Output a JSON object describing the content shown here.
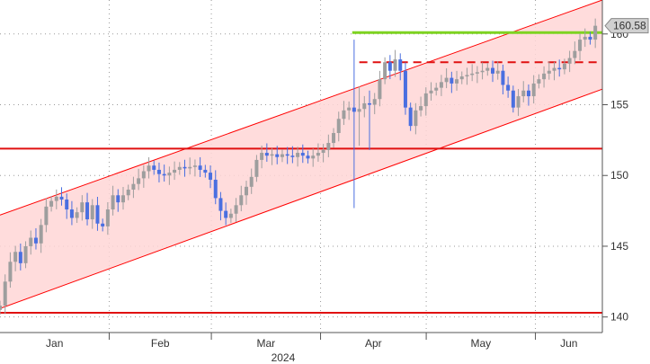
{
  "chart_data": {
    "type": "candlestick",
    "x_label": "2024",
    "months": [
      "Jan",
      "Feb",
      "Mar",
      "Apr",
      "May",
      "Jun"
    ],
    "y_axis": {
      "min": 138.9,
      "max": 162.4,
      "ticks": [
        "140",
        "145",
        "150",
        "155",
        "160"
      ],
      "side": "right",
      "grid": "dotted"
    },
    "last_price_label": "160.58",
    "series": {
      "start_date": "2024-01-01",
      "end_date": "2024-06-18",
      "closes": [
        140.8,
        142.5,
        143.9,
        144.6,
        143.8,
        145.0,
        145.6,
        145.2,
        146.5,
        147.8,
        148.2,
        148.5,
        148.3,
        147.6,
        147.0,
        147.4,
        148.1,
        146.9,
        147.9,
        146.6,
        146.4,
        147.6,
        148.6,
        148.1,
        148.6,
        149.0,
        149.4,
        149.8,
        150.3,
        150.7,
        150.4,
        150.1,
        150.0,
        150.2,
        150.4,
        150.6,
        150.5,
        150.6,
        150.7,
        150.4,
        150.2,
        149.7,
        148.4,
        147.5,
        147.0,
        147.3,
        147.9,
        148.6,
        149.2,
        149.9,
        151.1,
        151.6,
        151.4,
        151.5,
        151.3,
        151.5,
        151.4,
        151.3,
        151.6,
        151.4,
        151.2,
        151.4,
        151.6,
        151.8,
        152.3,
        153.0,
        154.0,
        154.6,
        154.8,
        154.5,
        154.7,
        155.1,
        155.0,
        155.4,
        156.8,
        158.0,
        157.4,
        158.2,
        157.4,
        154.8,
        153.5,
        154.6,
        154.9,
        155.8,
        156.0,
        156.2,
        156.6,
        156.9,
        156.5,
        156.8,
        157.0,
        157.1,
        157.2,
        157.3,
        157.4,
        157.6,
        157.2,
        157.4,
        156.4,
        156.0,
        154.8,
        155.6,
        156.0,
        155.6,
        156.5,
        156.8,
        157.2,
        157.4,
        157.6,
        157.5,
        157.9,
        158.3,
        158.8,
        159.6,
        159.8,
        159.6,
        160.58
      ],
      "notable_wicks": [
        {
          "date": "2024-04-10",
          "low": 147.7,
          "high": 159.6
        },
        {
          "date": "2024-04-11",
          "low": 151.9,
          "high": 155.7
        },
        {
          "date": "2024-04-12",
          "low": 152.1,
          "high": 156.3
        },
        {
          "date": "2024-04-15",
          "low": 151.8,
          "high": 156.0
        }
      ]
    },
    "channel": {
      "lower": {
        "start_date": "2024-01-01",
        "start_value": 140.6,
        "end_date": "2024-06-20",
        "end_value": 156.1
      },
      "upper": {
        "start_date": "2024-01-01",
        "start_value": 147.2,
        "end_date": "2024-06-20",
        "end_value": 162.4
      },
      "fill_color": "#ffd6d6",
      "line_color": "#ff0000"
    },
    "horizontal_lines": [
      {
        "value": 151.9,
        "color": "#e01010",
        "style": "solid"
      },
      {
        "value": 140.3,
        "color": "#e01010",
        "style": "solid"
      },
      {
        "value": 158.0,
        "color": "#e01010",
        "style": "dashed",
        "start_date": "2024-04-12",
        "end_date": "2024-06-20"
      },
      {
        "value": 160.1,
        "color": "#7ed321",
        "style": "solid",
        "start_date": "2024-04-10",
        "end_date": "2024-06-20"
      }
    ],
    "colors": {
      "up": "#9e9e9e",
      "down": "#4a6fe0",
      "axis": "#555555"
    }
  }
}
